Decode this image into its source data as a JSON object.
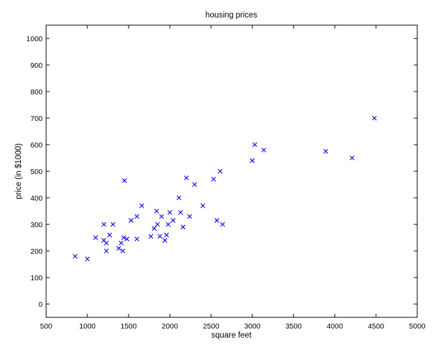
{
  "chart_data": {
    "type": "scatter",
    "title": "housing prices",
    "xlabel": "square feet",
    "ylabel": "price (in $1000)",
    "xlim": [
      500,
      5000
    ],
    "ylim": [
      -50,
      1050
    ],
    "xticks": [
      500,
      1000,
      1500,
      2000,
      2500,
      3000,
      3500,
      4000,
      4500,
      5000
    ],
    "yticks": [
      0,
      100,
      200,
      300,
      400,
      500,
      600,
      700,
      800,
      900,
      1000
    ],
    "xtick_labels": [
      "500",
      "1000",
      "1500",
      "2000",
      "2500",
      "3000",
      "3500",
      "4000",
      "4500",
      "5000"
    ],
    "ytick_labels": [
      "0",
      "100",
      "200",
      "300",
      "400",
      "500",
      "600",
      "700",
      "800",
      "900",
      "1000"
    ],
    "grid": false,
    "legend": null,
    "marker": "x",
    "marker_color": "#0000ff",
    "x": [
      852,
      1000,
      1100,
      1200,
      1200,
      1230,
      1230,
      1270,
      1310,
      1380,
      1410,
      1430,
      1440,
      1450,
      1480,
      1530,
      1600,
      1600,
      1660,
      1770,
      1810,
      1840,
      1850,
      1880,
      1900,
      1940,
      1960,
      1980,
      2000,
      2040,
      2110,
      2130,
      2160,
      2200,
      2240,
      2300,
      2400,
      2530,
      2570,
      2610,
      2640,
      3000,
      3030,
      3140,
      3890,
      4210,
      4480
    ],
    "y": [
      180,
      170,
      250,
      300,
      240,
      230,
      200,
      260,
      300,
      210,
      230,
      200,
      250,
      465,
      245,
      315,
      330,
      245,
      370,
      255,
      285,
      350,
      300,
      255,
      330,
      240,
      260,
      300,
      345,
      315,
      400,
      345,
      290,
      475,
      330,
      450,
      370,
      470,
      315,
      500,
      300,
      540,
      600,
      580,
      575,
      550,
      700
    ]
  }
}
